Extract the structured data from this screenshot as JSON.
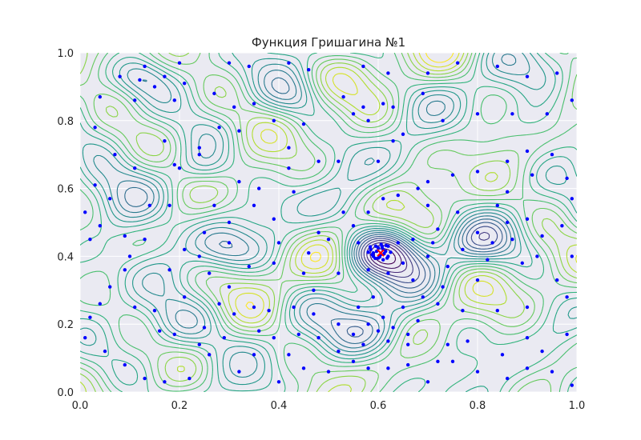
{
  "chart_data": {
    "type": "contour",
    "title": "Функция Гришагина №1",
    "xlabel": "",
    "ylabel": "",
    "xlim": [
      0.0,
      1.0
    ],
    "ylim": [
      0.0,
      1.0
    ],
    "x_ticks": [
      "0.0",
      "0.2",
      "0.4",
      "0.6",
      "0.8",
      "1.0"
    ],
    "y_ticks": [
      "0.0",
      "0.2",
      "0.4",
      "0.6",
      "0.8",
      "1.0"
    ],
    "x_tick_values": [
      0.0,
      0.2,
      0.4,
      0.6,
      0.8,
      1.0
    ],
    "y_tick_values": [
      0.0,
      0.2,
      0.4,
      0.6,
      0.8,
      1.0
    ],
    "grid": true,
    "background": "#eaeaf2",
    "colormap": "viridis",
    "trial_point_color": "#0000ff",
    "optimum_marker": {
      "x": 0.605,
      "y": 0.41,
      "symbol": "x",
      "color": "#ff0000"
    },
    "trial_points": [
      [
        0.08,
        0.93
      ],
      [
        0.12,
        0.92
      ],
      [
        0.17,
        0.93
      ],
      [
        0.19,
        0.86
      ],
      [
        0.04,
        0.87
      ],
      [
        0.03,
        0.78
      ],
      [
        0.11,
        0.86
      ],
      [
        0.15,
        0.9
      ],
      [
        0.21,
        0.91
      ],
      [
        0.13,
        0.96
      ],
      [
        0.2,
        0.97
      ],
      [
        0.3,
        0.97
      ],
      [
        0.34,
        0.96
      ],
      [
        0.42,
        0.97
      ],
      [
        0.46,
        0.95
      ],
      [
        0.57,
        0.96
      ],
      [
        0.62,
        0.94
      ],
      [
        0.7,
        0.94
      ],
      [
        0.76,
        0.97
      ],
      [
        0.84,
        0.96
      ],
      [
        0.9,
        0.93
      ],
      [
        0.96,
        0.94
      ],
      [
        0.99,
        0.86
      ],
      [
        0.94,
        0.82
      ],
      [
        0.87,
        0.82
      ],
      [
        0.8,
        0.82
      ],
      [
        0.73,
        0.8
      ],
      [
        0.65,
        0.76
      ],
      [
        0.55,
        0.82
      ],
      [
        0.53,
        0.87
      ],
      [
        0.57,
        0.84
      ],
      [
        0.61,
        0.85
      ],
      [
        0.63,
        0.84
      ],
      [
        0.58,
        0.8
      ],
      [
        0.69,
        0.88
      ],
      [
        0.27,
        0.88
      ],
      [
        0.31,
        0.84
      ],
      [
        0.35,
        0.85
      ],
      [
        0.28,
        0.78
      ],
      [
        0.24,
        0.72
      ],
      [
        0.17,
        0.74
      ],
      [
        0.24,
        0.7
      ],
      [
        0.2,
        0.66
      ],
      [
        0.19,
        0.67
      ],
      [
        0.32,
        0.77
      ],
      [
        0.39,
        0.8
      ],
      [
        0.45,
        0.79
      ],
      [
        0.42,
        0.72
      ],
      [
        0.48,
        0.68
      ],
      [
        0.52,
        0.68
      ],
      [
        0.6,
        0.68
      ],
      [
        0.63,
        0.74
      ],
      [
        0.7,
        0.62
      ],
      [
        0.75,
        0.64
      ],
      [
        0.8,
        0.65
      ],
      [
        0.86,
        0.68
      ],
      [
        0.9,
        0.71
      ],
      [
        0.95,
        0.7
      ],
      [
        0.98,
        0.63
      ],
      [
        0.91,
        0.64
      ],
      [
        0.86,
        0.59
      ],
      [
        0.84,
        0.55
      ],
      [
        0.76,
        0.53
      ],
      [
        0.7,
        0.55
      ],
      [
        0.68,
        0.6
      ],
      [
        0.61,
        0.57
      ],
      [
        0.53,
        0.53
      ],
      [
        0.55,
        0.49
      ],
      [
        0.48,
        0.47
      ],
      [
        0.5,
        0.45
      ],
      [
        0.56,
        0.44
      ],
      [
        0.46,
        0.41
      ],
      [
        0.64,
        0.44
      ],
      [
        0.65,
        0.38
      ],
      [
        0.71,
        0.44
      ],
      [
        0.77,
        0.42
      ],
      [
        0.83,
        0.44
      ],
      [
        0.86,
        0.5
      ],
      [
        0.9,
        0.51
      ],
      [
        0.92,
        0.4
      ],
      [
        0.89,
        0.38
      ],
      [
        0.96,
        0.33
      ],
      [
        0.99,
        0.4
      ],
      [
        0.82,
        0.39
      ],
      [
        0.8,
        0.33
      ],
      [
        0.73,
        0.31
      ],
      [
        0.67,
        0.33
      ],
      [
        0.69,
        0.28
      ],
      [
        0.72,
        0.26
      ],
      [
        0.77,
        0.24
      ],
      [
        0.84,
        0.24
      ],
      [
        0.9,
        0.25
      ],
      [
        0.98,
        0.28
      ],
      [
        0.98,
        0.17
      ],
      [
        0.9,
        0.16
      ],
      [
        0.85,
        0.11
      ],
      [
        0.78,
        0.15
      ],
      [
        0.74,
        0.14
      ],
      [
        0.72,
        0.09
      ],
      [
        0.66,
        0.08
      ],
      [
        0.62,
        0.07
      ],
      [
        0.58,
        0.07
      ],
      [
        0.55,
        0.09
      ],
      [
        0.52,
        0.12
      ],
      [
        0.5,
        0.06
      ],
      [
        0.45,
        0.07
      ],
      [
        0.42,
        0.11
      ],
      [
        0.39,
        0.16
      ],
      [
        0.36,
        0.18
      ],
      [
        0.38,
        0.24
      ],
      [
        0.35,
        0.25
      ],
      [
        0.31,
        0.23
      ],
      [
        0.28,
        0.26
      ],
      [
        0.3,
        0.31
      ],
      [
        0.26,
        0.35
      ],
      [
        0.24,
        0.4
      ],
      [
        0.3,
        0.44
      ],
      [
        0.34,
        0.37
      ],
      [
        0.39,
        0.38
      ],
      [
        0.4,
        0.44
      ],
      [
        0.39,
        0.51
      ],
      [
        0.35,
        0.55
      ],
      [
        0.3,
        0.5
      ],
      [
        0.25,
        0.47
      ],
      [
        0.27,
        0.55
      ],
      [
        0.32,
        0.62
      ],
      [
        0.36,
        0.6
      ],
      [
        0.43,
        0.59
      ],
      [
        0.42,
        0.66
      ],
      [
        0.18,
        0.55
      ],
      [
        0.14,
        0.55
      ],
      [
        0.09,
        0.46
      ],
      [
        0.1,
        0.4
      ],
      [
        0.09,
        0.36
      ],
      [
        0.06,
        0.31
      ],
      [
        0.04,
        0.26
      ],
      [
        0.02,
        0.22
      ],
      [
        0.01,
        0.16
      ],
      [
        0.05,
        0.12
      ],
      [
        0.09,
        0.08
      ],
      [
        0.13,
        0.04
      ],
      [
        0.17,
        0.03
      ],
      [
        0.22,
        0.04
      ],
      [
        0.26,
        0.11
      ],
      [
        0.29,
        0.16
      ],
      [
        0.24,
        0.14
      ],
      [
        0.19,
        0.17
      ],
      [
        0.15,
        0.24
      ],
      [
        0.11,
        0.25
      ],
      [
        0.16,
        0.18
      ],
      [
        0.21,
        0.28
      ],
      [
        0.25,
        0.19
      ],
      [
        0.06,
        0.57
      ],
      [
        0.03,
        0.61
      ],
      [
        0.01,
        0.53
      ],
      [
        0.02,
        0.45
      ],
      [
        0.04,
        0.49
      ],
      [
        0.13,
        0.45
      ],
      [
        0.18,
        0.36
      ],
      [
        0.21,
        0.42
      ],
      [
        0.07,
        0.7
      ],
      [
        0.11,
        0.66
      ],
      [
        0.47,
        0.3
      ],
      [
        0.43,
        0.25
      ],
      [
        0.47,
        0.23
      ],
      [
        0.48,
        0.16
      ],
      [
        0.52,
        0.2
      ],
      [
        0.55,
        0.17
      ],
      [
        0.58,
        0.2
      ],
      [
        0.6,
        0.18
      ],
      [
        0.62,
        0.15
      ],
      [
        0.57,
        0.14
      ],
      [
        0.61,
        0.22
      ],
      [
        0.63,
        0.19
      ],
      [
        0.66,
        0.17
      ],
      [
        0.56,
        0.25
      ],
      [
        0.59,
        0.28
      ],
      [
        0.65,
        0.25
      ],
      [
        0.68,
        0.21
      ],
      [
        0.66,
        0.14
      ],
      [
        0.75,
        0.09
      ],
      [
        0.8,
        0.06
      ],
      [
        0.86,
        0.04
      ],
      [
        0.9,
        0.07
      ],
      [
        0.93,
        0.12
      ],
      [
        0.95,
        0.06
      ],
      [
        0.99,
        0.02
      ],
      [
        0.7,
        0.03
      ],
      [
        0.4,
        0.03
      ],
      [
        0.32,
        0.06
      ],
      [
        0.35,
        0.11
      ],
      [
        0.44,
        0.17
      ],
      [
        0.45,
        0.35
      ],
      [
        0.52,
        0.35
      ],
      [
        0.58,
        0.36
      ],
      [
        0.62,
        0.35
      ],
      [
        0.67,
        0.45
      ],
      [
        0.7,
        0.4
      ],
      [
        0.74,
        0.37
      ],
      [
        0.58,
        0.53
      ],
      [
        0.64,
        0.58
      ],
      [
        0.72,
        0.48
      ],
      [
        0.8,
        0.47
      ],
      [
        0.87,
        0.45
      ],
      [
        0.93,
        0.46
      ],
      [
        0.97,
        0.49
      ],
      [
        0.99,
        0.57
      ]
    ],
    "cluster_points": [
      [
        0.585,
        0.42
      ],
      [
        0.59,
        0.4
      ],
      [
        0.595,
        0.43
      ],
      [
        0.6,
        0.395
      ],
      [
        0.6,
        0.425
      ],
      [
        0.605,
        0.405
      ],
      [
        0.61,
        0.42
      ],
      [
        0.61,
        0.39
      ],
      [
        0.615,
        0.415
      ],
      [
        0.62,
        0.4
      ],
      [
        0.62,
        0.43
      ],
      [
        0.59,
        0.41
      ],
      [
        0.597,
        0.415
      ],
      [
        0.603,
        0.398
      ],
      [
        0.612,
        0.408
      ],
      [
        0.608,
        0.428
      ],
      [
        0.588,
        0.405
      ],
      [
        0.618,
        0.395
      ],
      [
        0.625,
        0.412
      ],
      [
        0.58,
        0.412
      ],
      [
        0.594,
        0.394
      ],
      [
        0.606,
        0.435
      ],
      [
        0.616,
        0.432
      ],
      [
        0.584,
        0.428
      ]
    ]
  }
}
